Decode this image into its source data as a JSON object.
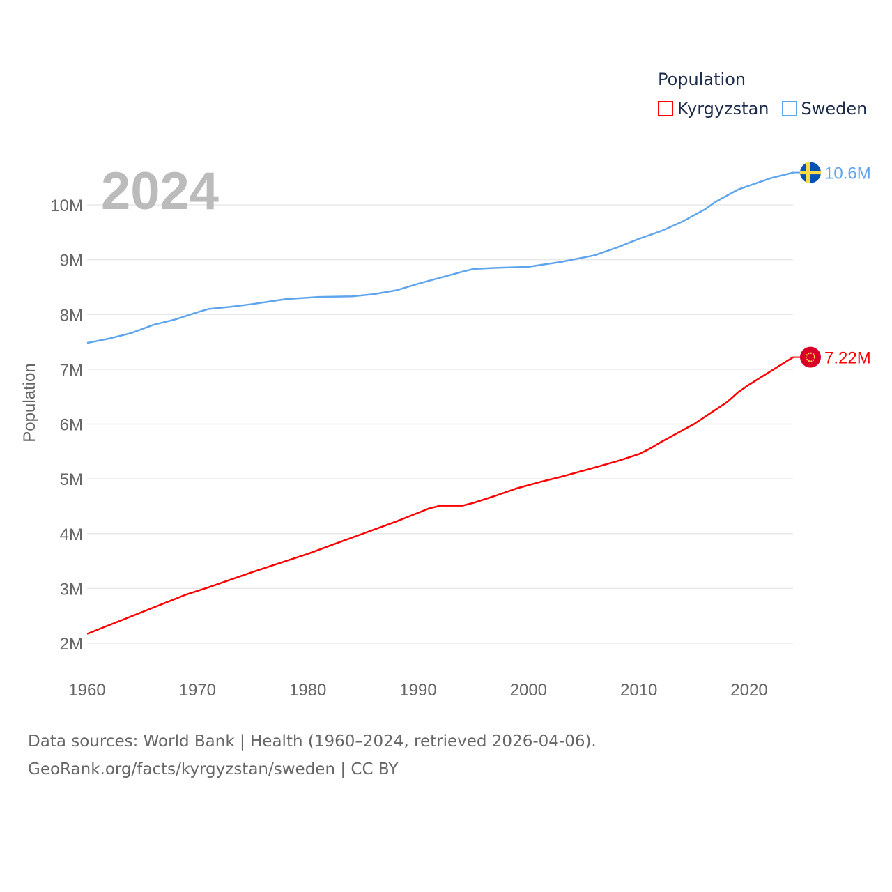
{
  "chart_data": {
    "type": "line",
    "title": "",
    "year_label": "2024",
    "xlabel": "",
    "ylabel": "Population",
    "xlim": [
      1960,
      2024
    ],
    "ylim": [
      2,
      10.6
    ],
    "grid": true,
    "x_ticks": [
      1960,
      1970,
      1980,
      1990,
      2000,
      2010,
      2020
    ],
    "y_ticks": [
      2,
      3,
      4,
      5,
      6,
      7,
      8,
      9,
      10
    ],
    "y_tick_labels": [
      "2M",
      "3M",
      "4M",
      "5M",
      "6M",
      "7M",
      "8M",
      "9M",
      "10M"
    ],
    "units": "millions",
    "legend": {
      "title": "Population",
      "placement": "top-right"
    },
    "series": [
      {
        "name": "Kyrgyzstan",
        "color": "#ff0000",
        "end_label": "7.22M",
        "flag": "kyrgyzstan-flag",
        "x": [
          1960,
          1963,
          1966,
          1969,
          1971,
          1975,
          1980,
          1982,
          1985,
          1988,
          1990,
          1991,
          1992,
          1994,
          1995,
          1997,
          1999,
          2001,
          2003,
          2005,
          2008,
          2010,
          2011,
          2012,
          2015,
          2018,
          2019,
          2020,
          2022,
          2024
        ],
        "values": [
          2.17,
          2.41,
          2.65,
          2.89,
          3.02,
          3.3,
          3.63,
          3.78,
          4.0,
          4.22,
          4.38,
          4.46,
          4.51,
          4.51,
          4.56,
          4.69,
          4.83,
          4.94,
          5.04,
          5.15,
          5.32,
          5.45,
          5.55,
          5.67,
          6.0,
          6.4,
          6.58,
          6.72,
          6.97,
          7.22
        ]
      },
      {
        "name": "Sweden",
        "color": "#5fa5ee",
        "end_label": "10.6M",
        "flag": "sweden-flag",
        "x": [
          1960,
          1962,
          1964,
          1966,
          1968,
          1970,
          1971,
          1973,
          1975,
          1978,
          1981,
          1984,
          1986,
          1988,
          1990,
          1992,
          1994,
          1995,
          1997,
          2000,
          2003,
          2006,
          2008,
          2010,
          2012,
          2014,
          2016,
          2017,
          2019,
          2020,
          2022,
          2024
        ],
        "values": [
          7.48,
          7.56,
          7.66,
          7.81,
          7.91,
          8.04,
          8.1,
          8.14,
          8.19,
          8.28,
          8.32,
          8.33,
          8.37,
          8.44,
          8.56,
          8.67,
          8.78,
          8.83,
          8.85,
          8.87,
          8.96,
          9.08,
          9.22,
          9.38,
          9.52,
          9.7,
          9.92,
          10.06,
          10.28,
          10.35,
          10.49,
          10.59
        ]
      }
    ]
  },
  "footer": {
    "line1": "Data sources: World Bank | Health (1960–2024, retrieved 2026-04-06).",
    "line2": "GeoRank.org/facts/kyrgyzstan/sweden | CC BY"
  }
}
